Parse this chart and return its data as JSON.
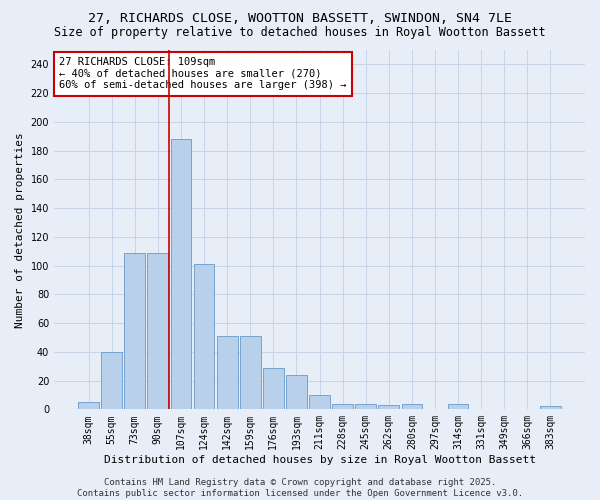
{
  "title": "27, RICHARDS CLOSE, WOOTTON BASSETT, SWINDON, SN4 7LE",
  "subtitle": "Size of property relative to detached houses in Royal Wootton Bassett",
  "xlabel": "Distribution of detached houses by size in Royal Wootton Bassett",
  "ylabel": "Number of detached properties",
  "categories": [
    "38sqm",
    "55sqm",
    "73sqm",
    "90sqm",
    "107sqm",
    "124sqm",
    "142sqm",
    "159sqm",
    "176sqm",
    "193sqm",
    "211sqm",
    "228sqm",
    "245sqm",
    "262sqm",
    "280sqm",
    "297sqm",
    "314sqm",
    "331sqm",
    "349sqm",
    "366sqm",
    "383sqm"
  ],
  "values": [
    5,
    40,
    109,
    109,
    188,
    101,
    51,
    51,
    29,
    24,
    10,
    4,
    4,
    3,
    4,
    0,
    4,
    0,
    0,
    0,
    2
  ],
  "bar_color": "#b8d0ea",
  "bar_edge_color": "#6699cc",
  "grid_color": "#c8d4e8",
  "bg_color": "#e8eef8",
  "vline_color": "#cc0000",
  "annotation_text": "27 RICHARDS CLOSE: 109sqm\n← 40% of detached houses are smaller (270)\n60% of semi-detached houses are larger (398) →",
  "annotation_box_color": "white",
  "annotation_box_edge": "#cc0000",
  "footer": "Contains HM Land Registry data © Crown copyright and database right 2025.\nContains public sector information licensed under the Open Government Licence v3.0.",
  "ylim": [
    0,
    250
  ],
  "yticks": [
    0,
    20,
    40,
    60,
    80,
    100,
    120,
    140,
    160,
    180,
    200,
    220,
    240
  ],
  "title_fontsize": 9.5,
  "subtitle_fontsize": 8.5,
  "xlabel_fontsize": 8,
  "ylabel_fontsize": 8,
  "tick_fontsize": 7,
  "footer_fontsize": 6.5,
  "annotation_fontsize": 7.5
}
